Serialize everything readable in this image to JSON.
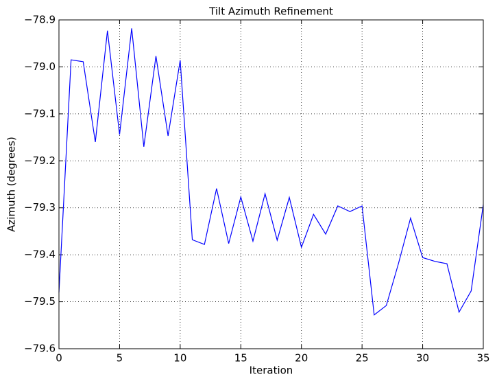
{
  "chart_data": {
    "type": "line",
    "title": "Tilt Azimuth Refinement",
    "x_label": "Iteration",
    "y_label": "Azimuth (degrees)",
    "x": [
      0,
      1,
      2,
      3,
      4,
      5,
      6,
      7,
      8,
      9,
      10,
      11,
      12,
      13,
      14,
      15,
      16,
      17,
      18,
      19,
      20,
      21,
      22,
      23,
      24,
      25,
      26,
      27,
      28,
      29,
      30,
      31,
      32,
      33,
      34,
      35
    ],
    "values": [
      -79.48,
      -78.985,
      -78.989,
      -79.16,
      -78.923,
      -79.144,
      -78.918,
      -79.17,
      -78.977,
      -79.147,
      -78.986,
      -79.368,
      -79.378,
      -79.259,
      -79.376,
      -79.277,
      -79.371,
      -79.27,
      -79.369,
      -79.278,
      -79.384,
      -79.314,
      -79.356,
      -79.296,
      -79.308,
      -79.296,
      -79.528,
      -79.508,
      -79.419,
      -79.322,
      -79.406,
      -79.414,
      -79.419,
      -79.522,
      -79.477,
      -79.293
    ],
    "color": "#0000ff",
    "xlim": [
      0,
      35
    ],
    "xticks": [
      0,
      5,
      10,
      15,
      20,
      25,
      30,
      35
    ],
    "ylim": [
      -79.6,
      -78.9
    ],
    "yticks": [
      {
        "value": -79.6,
        "label": "−79.6"
      },
      {
        "value": -79.5,
        "label": "−79.5"
      },
      {
        "value": -79.4,
        "label": "−79.4"
      },
      {
        "value": -79.3,
        "label": "−79.3"
      },
      {
        "value": -79.2,
        "label": "−79.2"
      },
      {
        "value": -79.1,
        "label": "−79.1"
      },
      {
        "value": -79.0,
        "label": "−79.0"
      },
      {
        "value": -78.9,
        "label": "−78.9"
      }
    ],
    "grid": true
  }
}
